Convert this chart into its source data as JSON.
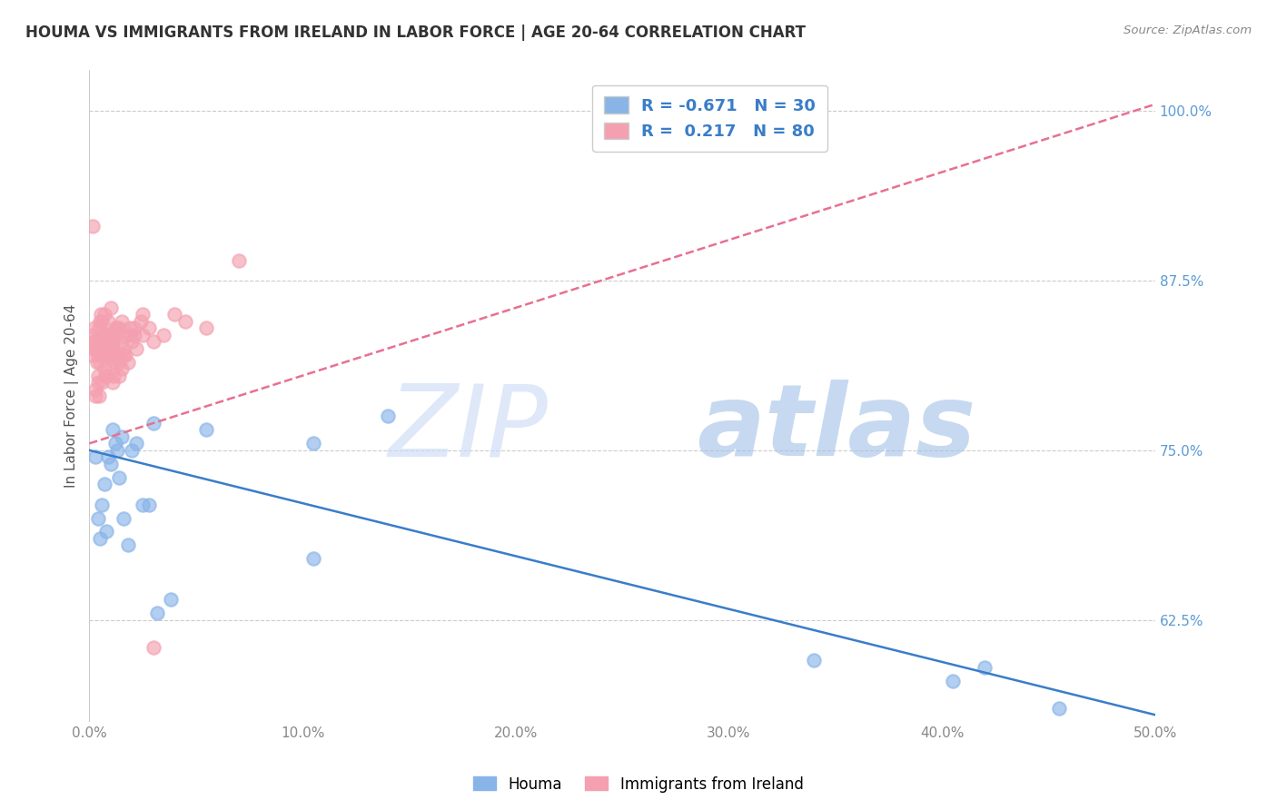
{
  "title": "HOUMA VS IMMIGRANTS FROM IRELAND IN LABOR FORCE | AGE 20-64 CORRELATION CHART",
  "source": "Source: ZipAtlas.com",
  "xlim": [
    0.0,
    50.0
  ],
  "ylim": [
    55.0,
    103.0
  ],
  "houma_color": "#89b4e8",
  "ireland_color": "#f4a0b0",
  "houma_line_color": "#3a7dc9",
  "ireland_line_color": "#e87090",
  "houma_R": -0.671,
  "houma_N": 30,
  "ireland_R": 0.217,
  "ireland_N": 80,
  "legend_label_houma": "Houma",
  "legend_label_ireland": "Immigrants from Ireland",
  "ylabel": "In Labor Force | Age 20-64",
  "houma_trend_x": [
    0.0,
    50.0
  ],
  "houma_trend_y": [
    75.0,
    55.5
  ],
  "ireland_trend_x": [
    0.0,
    50.0
  ],
  "ireland_trend_y": [
    75.5,
    100.5
  ],
  "houma_x": [
    0.3,
    0.4,
    0.5,
    0.6,
    0.7,
    0.8,
    0.9,
    1.0,
    1.1,
    1.2,
    1.3,
    1.4,
    1.5,
    1.6,
    1.8,
    2.0,
    2.2,
    2.5,
    2.8,
    3.0,
    3.2,
    3.8,
    5.5,
    10.5,
    10.5,
    14.0,
    34.0,
    40.5,
    42.0,
    45.5
  ],
  "houma_y": [
    74.5,
    70.0,
    68.5,
    71.0,
    72.5,
    69.0,
    74.5,
    74.0,
    76.5,
    75.5,
    75.0,
    73.0,
    76.0,
    70.0,
    68.0,
    75.0,
    75.5,
    71.0,
    71.0,
    77.0,
    63.0,
    64.0,
    76.5,
    67.0,
    75.5,
    77.5,
    59.5,
    58.0,
    59.0,
    56.0
  ],
  "ireland_x": [
    0.1,
    0.15,
    0.15,
    0.2,
    0.2,
    0.25,
    0.25,
    0.3,
    0.3,
    0.35,
    0.35,
    0.4,
    0.4,
    0.45,
    0.45,
    0.5,
    0.5,
    0.55,
    0.55,
    0.6,
    0.6,
    0.65,
    0.7,
    0.7,
    0.75,
    0.8,
    0.8,
    0.85,
    0.9,
    0.9,
    0.95,
    1.0,
    1.0,
    1.05,
    1.1,
    1.1,
    1.15,
    1.2,
    1.2,
    1.25,
    1.3,
    1.35,
    1.4,
    1.4,
    1.5,
    1.5,
    1.6,
    1.7,
    1.8,
    1.9,
    2.0,
    2.1,
    2.2,
    2.5,
    2.8,
    3.0,
    3.5,
    4.0,
    4.5,
    5.5,
    0.3,
    0.4,
    0.5,
    0.6,
    0.7,
    0.8,
    0.9,
    1.0,
    1.1,
    1.2,
    1.4,
    1.5,
    1.6,
    1.7,
    1.9,
    2.1,
    2.4,
    7.0,
    2.5,
    3.0
  ],
  "ireland_y": [
    82.0,
    83.5,
    91.5,
    82.5,
    83.0,
    83.0,
    84.0,
    79.5,
    82.5,
    81.5,
    82.5,
    80.0,
    82.0,
    79.0,
    84.0,
    83.0,
    84.5,
    82.0,
    85.0,
    83.5,
    84.5,
    82.5,
    83.0,
    85.0,
    80.5,
    82.0,
    83.5,
    83.0,
    83.5,
    84.5,
    82.0,
    83.5,
    85.5,
    82.5,
    81.0,
    83.0,
    80.5,
    82.0,
    84.0,
    83.5,
    84.0,
    82.0,
    81.5,
    84.0,
    83.0,
    84.5,
    82.5,
    82.0,
    81.5,
    83.5,
    83.0,
    84.0,
    82.5,
    83.5,
    84.0,
    83.0,
    83.5,
    85.0,
    84.5,
    84.0,
    79.0,
    80.5,
    81.5,
    80.0,
    81.0,
    80.5,
    82.0,
    83.0,
    80.0,
    81.5,
    80.5,
    81.0,
    82.0,
    83.5,
    84.0,
    83.5,
    84.5,
    89.0,
    85.0,
    60.5
  ]
}
